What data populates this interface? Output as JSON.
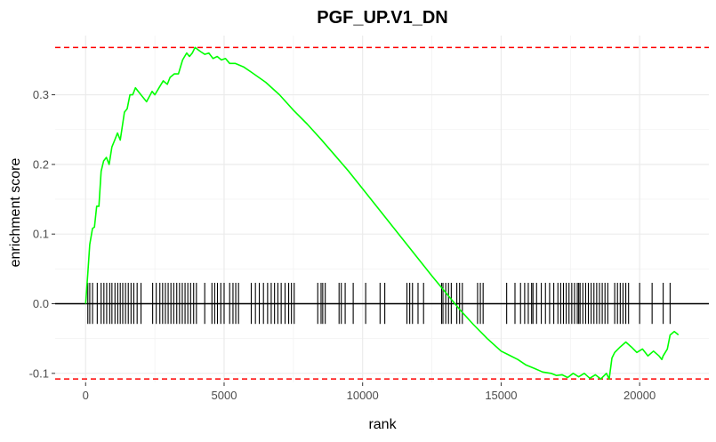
{
  "chart_data": {
    "type": "line",
    "title": "PGF_UP.V1_DN",
    "xlabel": "rank",
    "ylabel": "enrichment score",
    "xlim": [
      -1100,
      22500
    ],
    "ylim": [
      -0.113,
      0.385
    ],
    "x_ticks": [
      0,
      5000,
      10000,
      15000,
      20000
    ],
    "x_tick_labels": [
      "0",
      "5000",
      "10000",
      "15000",
      "20000"
    ],
    "y_ticks": [
      -0.1,
      0.0,
      0.1,
      0.2,
      0.3
    ],
    "y_tick_labels": [
      "-0.1",
      "0.0",
      "0.1",
      "0.2",
      "0.3"
    ],
    "grid": true,
    "series": [
      {
        "line_color": "#00ff00",
        "x": [
          0,
          80,
          150,
          250,
          320,
          400,
          480,
          560,
          650,
          750,
          850,
          950,
          1050,
          1150,
          1250,
          1400,
          1500,
          1600,
          1700,
          1800,
          1900,
          2000,
          2200,
          2400,
          2500,
          2650,
          2800,
          2950,
          3050,
          3200,
          3350,
          3500,
          3650,
          3750,
          3850,
          3950,
          4050,
          4150,
          4300,
          4450,
          4600,
          4750,
          4900,
          5050,
          5200,
          5400,
          5700,
          6000,
          6500,
          7000,
          7500,
          8000,
          8500,
          9000,
          9500,
          10000,
          10500,
          11000,
          11500,
          12000,
          12500,
          13000,
          13500,
          14000,
          14500,
          15000,
          15300,
          15600,
          15900,
          16200,
          16500,
          16800,
          17000,
          17200,
          17400,
          17600,
          17800,
          18000,
          18200,
          18400,
          18600,
          18800,
          18900,
          19000,
          19100,
          19300,
          19500,
          19700,
          19900,
          20100,
          20300,
          20500,
          20700,
          20800,
          20850,
          21000,
          21100,
          21250,
          21350,
          21400
        ],
        "y": [
          0.0,
          0.045,
          0.085,
          0.108,
          0.11,
          0.14,
          0.14,
          0.19,
          0.205,
          0.21,
          0.2,
          0.225,
          0.235,
          0.245,
          0.235,
          0.275,
          0.28,
          0.3,
          0.3,
          0.31,
          0.305,
          0.3,
          0.29,
          0.305,
          0.3,
          0.31,
          0.32,
          0.315,
          0.325,
          0.33,
          0.33,
          0.35,
          0.36,
          0.355,
          0.36,
          0.368,
          0.365,
          0.362,
          0.358,
          0.36,
          0.352,
          0.355,
          0.35,
          0.352,
          0.345,
          0.345,
          0.34,
          0.332,
          0.318,
          0.3,
          0.278,
          0.258,
          0.236,
          0.213,
          0.19,
          0.165,
          0.14,
          0.115,
          0.09,
          0.065,
          0.04,
          0.016,
          -0.008,
          -0.03,
          -0.05,
          -0.068,
          -0.074,
          -0.08,
          -0.088,
          -0.093,
          -0.098,
          -0.1,
          -0.103,
          -0.102,
          -0.106,
          -0.1,
          -0.105,
          -0.1,
          -0.107,
          -0.102,
          -0.108,
          -0.1,
          -0.108,
          -0.078,
          -0.07,
          -0.062,
          -0.055,
          -0.062,
          -0.07,
          -0.065,
          -0.075,
          -0.068,
          -0.075,
          -0.08,
          -0.075,
          -0.065,
          -0.045,
          -0.04,
          -0.043,
          -0.045
        ]
      }
    ],
    "hit_positions": [
      80,
      150,
      250,
      420,
      560,
      660,
      760,
      870,
      950,
      1060,
      1160,
      1250,
      1340,
      1440,
      1540,
      1640,
      1740,
      1860,
      2000,
      2420,
      2550,
      2680,
      2780,
      2880,
      2980,
      3080,
      3180,
      3290,
      3390,
      3490,
      3590,
      3690,
      3790,
      3900,
      4000,
      4300,
      4560,
      4660,
      4760,
      4880,
      5000,
      5200,
      5320,
      5420,
      5520,
      5980,
      6130,
      6270,
      6420,
      6570,
      6700,
      6820,
      6940,
      7060,
      7200,
      7330,
      7430,
      7530,
      8380,
      8500,
      8560,
      8650,
      9150,
      9230,
      9370,
      9660,
      10110,
      10630,
      10800,
      11600,
      11700,
      11800,
      12000,
      12200,
      12850,
      12900,
      13000,
      13100,
      13200,
      13400,
      13500,
      13600,
      14150,
      14250,
      14350,
      15200,
      15500,
      15700,
      15850,
      15980,
      16100,
      16150,
      16280,
      16450,
      16600,
      16750,
      16900,
      17050,
      17150,
      17250,
      17350,
      17450,
      17550,
      17650,
      17750,
      17800,
      17850,
      17950,
      18050,
      18150,
      18250,
      18350,
      18450,
      18550,
      18650,
      18750,
      18850,
      19100,
      19200,
      19300,
      19400,
      19500,
      19600,
      20000,
      20450,
      20850,
      21100
    ],
    "hit_color": "#000000",
    "dashed_lines": [
      0.368,
      -0.108
    ],
    "dashed_color": "#ff0000",
    "zero_line": 0.0
  }
}
